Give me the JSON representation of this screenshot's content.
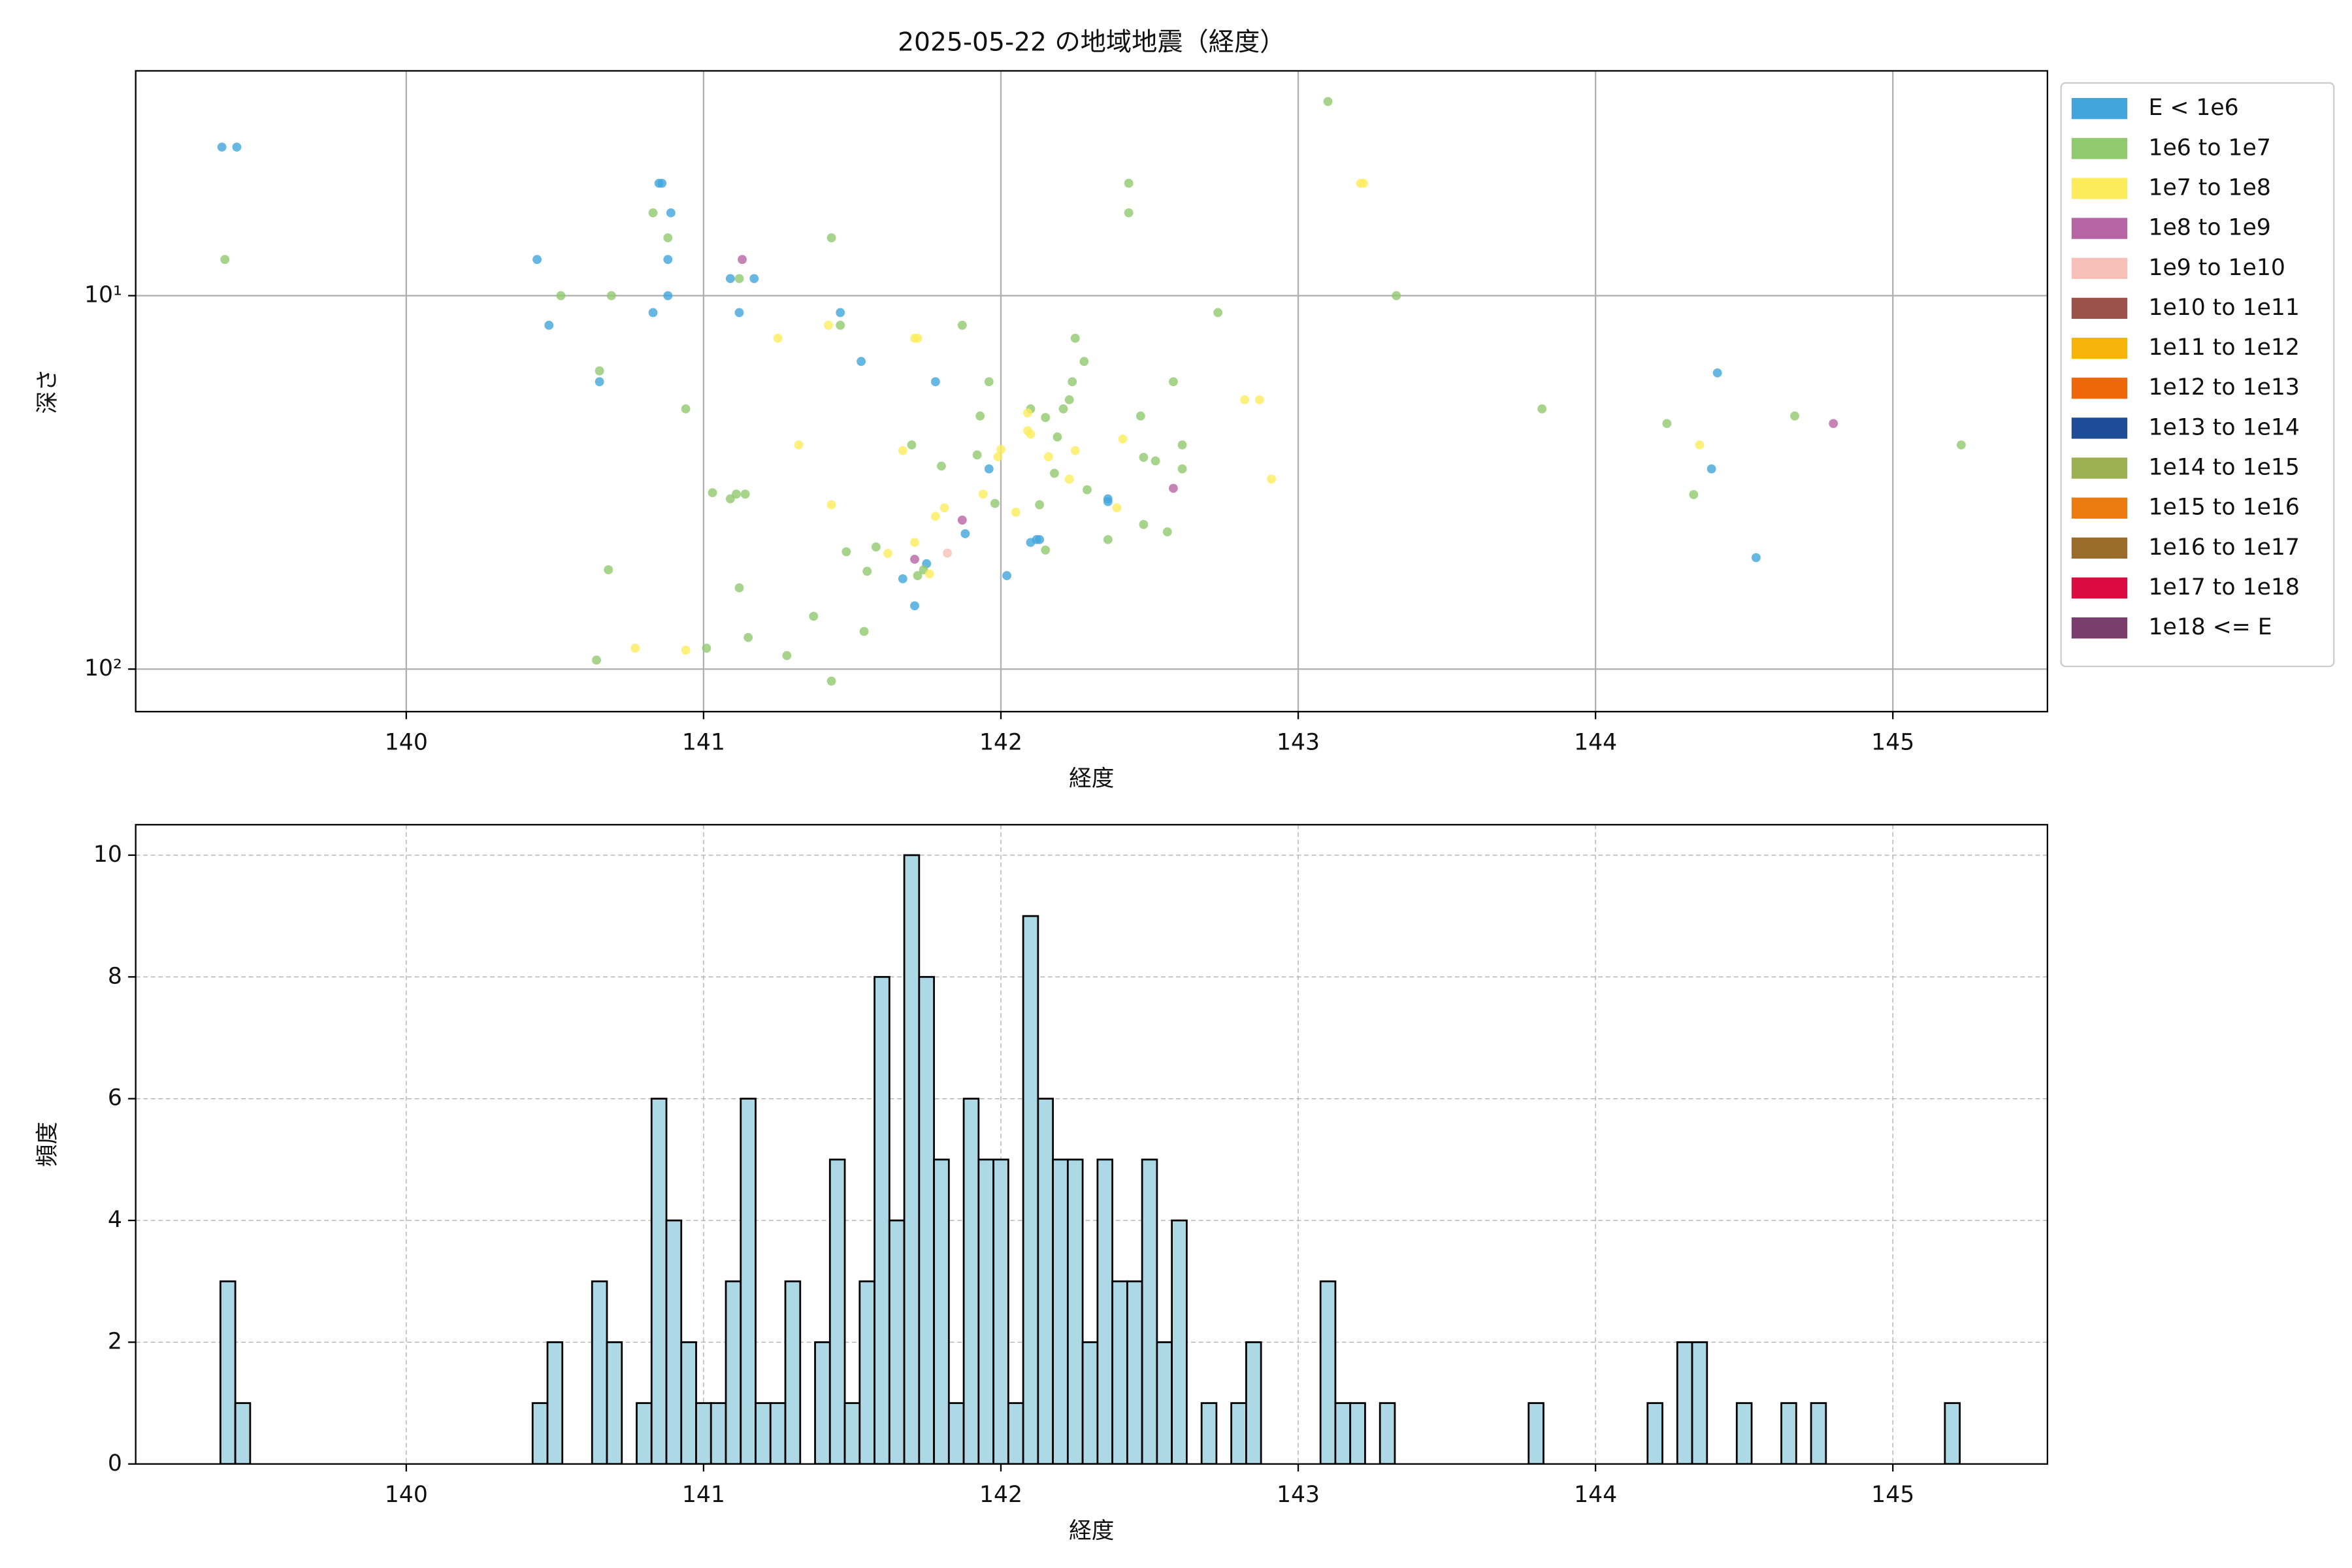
{
  "chart_data": [
    {
      "type": "scatter",
      "title": "2025-05-22 の地域地震（経度）",
      "x_label": "経度",
      "y_label": "深さ",
      "xlim": [
        139.09,
        145.52
      ],
      "xticks": [
        140,
        141,
        142,
        143,
        144,
        145
      ],
      "ylim": [
        2.5,
        130
      ],
      "y_scale": "log",
      "y_inverted": true,
      "yticks": [
        {
          "value": 10,
          "label": "10¹"
        },
        {
          "value": 100,
          "label": "10²"
        }
      ],
      "grid": true,
      "grid_linestyle": "solid",
      "legend": "outside upper right",
      "series": [
        {
          "name": "E < 1e6",
          "color": "#41a5dc",
          "x": [
            139.38,
            139.43,
            140.44,
            140.48,
            140.65,
            140.83,
            140.85,
            140.86,
            140.88,
            140.88,
            140.89,
            141.09,
            141.12,
            141.17,
            141.46,
            141.53,
            141.78,
            141.71,
            141.67,
            141.75,
            141.88,
            141.96,
            142.02,
            142.1,
            142.12,
            142.13,
            142.36,
            142.36,
            144.41,
            144.39,
            144.54
          ],
          "values": [
            4,
            4,
            8,
            12,
            17,
            11.1,
            5,
            5,
            8,
            10,
            6,
            9,
            11.1,
            9,
            11.1,
            15,
            17,
            67.7,
            57.3,
            52.2,
            43.4,
            29.1,
            56.2,
            45.8,
            45,
            45,
            35,
            35.6,
            16.1,
            29.1,
            50.3
          ]
        },
        {
          "name": "1e6 to 1e7",
          "color": "#90c96e",
          "x": [
            139.39,
            140.52,
            140.65,
            140.69,
            140.68,
            140.64,
            140.83,
            140.88,
            140.94,
            141.01,
            141.12,
            141.03,
            141.09,
            141.11,
            141.14,
            141.12,
            141.15,
            141.28,
            141.37,
            141.43,
            141.46,
            141.43,
            141.48,
            141.54,
            141.55,
            141.58,
            141.7,
            141.72,
            141.74,
            141.8,
            141.87,
            141.92,
            141.93,
            141.96,
            141.98,
            142.1,
            142.13,
            142.15,
            142.15,
            142.18,
            142.19,
            142.21,
            142.23,
            142.24,
            142.25,
            142.28,
            142.29,
            142.36,
            142.43,
            142.43,
            142.47,
            142.48,
            142.48,
            142.52,
            142.56,
            142.58,
            142.61,
            142.61,
            142.73,
            143.33,
            143.1,
            143.82,
            144.24,
            144.33,
            144.67,
            145.23
          ],
          "values": [
            8,
            10,
            15.9,
            10,
            54.2,
            94.6,
            6,
            7,
            20.1,
            87.9,
            9,
            33.7,
            35,
            34,
            34,
            60.6,
            82.3,
            92,
            72.2,
            7,
            12,
            107.7,
            48.5,
            79.3,
            54.7,
            47.1,
            25.1,
            56.2,
            54.2,
            28.6,
            12,
            26.7,
            21,
            17,
            36,
            20.1,
            36.3,
            21.2,
            48,
            29.9,
            23.9,
            20.1,
            19,
            17,
            13,
            15,
            33.1,
            45,
            6,
            5,
            21,
            27.1,
            41,
            27.7,
            42.9,
            17,
            29.1,
            25.1,
            11.1,
            10,
            3.02,
            20.1,
            22,
            34.1,
            21,
            25.1
          ]
        },
        {
          "name": "1e7 to 1e8",
          "color": "#fcec5b",
          "x": [
            143.21,
            143.22,
            141.25,
            141.42,
            141.71,
            141.72,
            141.32,
            141.43,
            141.67,
            141.71,
            141.78,
            141.81,
            141.62,
            141.76,
            141.94,
            141.99,
            142.0,
            142.05,
            142.09,
            142.09,
            142.1,
            142.16,
            142.23,
            142.25,
            142.39,
            142.41,
            142.82,
            142.87,
            142.91,
            144.35,
            140.77,
            140.94
          ],
          "values": [
            5,
            5,
            13,
            12,
            13,
            13,
            25.1,
            36.3,
            26,
            45.8,
            39,
            37,
            49,
            55.6,
            34,
            27,
            25.8,
            38,
            20.6,
            23,
            23.5,
            27,
            31,
            26,
            37,
            24.2,
            19,
            19,
            31,
            25.1,
            87.9,
            89
          ]
        },
        {
          "name": "1e8 to 1e9",
          "color": "#b764a5",
          "x": [
            141.13,
            141.87,
            141.71,
            142.58,
            144.8
          ],
          "values": [
            8,
            39.9,
            50.8,
            32.8,
            22
          ]
        },
        {
          "name": "1e9 to 1e10",
          "color": "#f6c0b8",
          "x": [
            141.82
          ],
          "values": [
            48.9
          ]
        },
        {
          "name": "1e10 to 1e11",
          "color": "#9b5048",
          "x": [],
          "values": []
        },
        {
          "name": "1e11 to 1e12",
          "color": "#f6b30a",
          "x": [],
          "values": []
        },
        {
          "name": "1e12 to 1e13",
          "color": "#ee6708",
          "x": [],
          "values": []
        },
        {
          "name": "1e13 to 1e14",
          "color": "#1d4d96",
          "x": [],
          "values": []
        },
        {
          "name": "1e14 to 1e15",
          "color": "#9caf51",
          "x": [],
          "values": []
        },
        {
          "name": "1e15 to 1e16",
          "color": "#ec7b0f",
          "x": [],
          "values": []
        },
        {
          "name": "1e16 to 1e17",
          "color": "#9a6c2c",
          "x": [],
          "values": []
        },
        {
          "name": "1e17 to 1e18",
          "color": "#db0a40",
          "x": [],
          "values": []
        },
        {
          "name": "1e18 <= E",
          "color": "#7a3e6d",
          "x": [],
          "values": []
        }
      ]
    },
    {
      "type": "histogram",
      "x_label": "経度",
      "y_label": "頻度",
      "xlim": [
        139.09,
        145.52
      ],
      "xticks": [
        140,
        141,
        142,
        143,
        144,
        145
      ],
      "ylim": [
        0,
        10.5
      ],
      "yticks": [
        0,
        2,
        4,
        6,
        8,
        10
      ],
      "grid": true,
      "grid_linestyle": "dashed",
      "color": "#add8e6",
      "edge_color": "#000000",
      "bins": [
        139.375,
        139.425,
        139.475,
        139.525,
        139.575,
        139.625,
        139.675,
        139.725,
        139.775,
        139.825,
        139.875,
        139.925,
        139.975,
        140.025,
        140.075,
        140.125,
        140.175,
        140.225,
        140.275,
        140.325,
        140.375,
        140.425,
        140.475,
        140.525,
        140.575,
        140.625,
        140.675,
        140.725,
        140.775,
        140.825,
        140.875,
        140.925,
        140.975,
        141.025,
        141.075,
        141.125,
        141.175,
        141.225,
        141.275,
        141.325,
        141.375,
        141.425,
        141.475,
        141.525,
        141.575,
        141.625,
        141.675,
        141.725,
        141.775,
        141.825,
        141.875,
        141.925,
        141.975,
        142.025,
        142.075,
        142.125,
        142.175,
        142.225,
        142.275,
        142.325,
        142.375,
        142.425,
        142.475,
        142.525,
        142.575,
        142.625,
        142.675,
        142.725,
        142.775,
        142.825,
        142.875,
        142.925,
        142.975,
        143.025,
        143.075,
        143.125,
        143.175,
        143.225,
        143.275,
        143.325,
        143.375,
        143.425,
        143.475,
        143.525,
        143.575,
        143.625,
        143.675,
        143.725,
        143.775,
        143.825,
        143.875,
        143.925,
        143.975,
        144.025,
        144.075,
        144.125,
        144.175,
        144.225,
        144.275,
        144.325,
        144.375,
        144.425,
        144.475,
        144.525,
        144.575,
        144.625,
        144.675,
        144.725,
        144.775,
        144.825,
        144.875,
        144.925,
        144.975,
        145.025,
        145.075,
        145.125,
        145.175,
        145.225
      ],
      "values": [
        3,
        1,
        0,
        0,
        0,
        0,
        0,
        0,
        0,
        0,
        0,
        0,
        0,
        0,
        0,
        0,
        0,
        0,
        0,
        0,
        0,
        1,
        2,
        0,
        0,
        3,
        2,
        0,
        1,
        6,
        4,
        2,
        1,
        1,
        3,
        6,
        1,
        1,
        3,
        0,
        2,
        5,
        1,
        3,
        8,
        4,
        10,
        8,
        5,
        1,
        6,
        5,
        5,
        1,
        9,
        6,
        5,
        5,
        2,
        5,
        3,
        3,
        5,
        2,
        4,
        0,
        1,
        0,
        1,
        2,
        0,
        0,
        0,
        0,
        3,
        1,
        1,
        0,
        1,
        0,
        0,
        0,
        0,
        0,
        0,
        0,
        0,
        0,
        1,
        0,
        0,
        0,
        0,
        0,
        0,
        0,
        1,
        0,
        2,
        2,
        0,
        0,
        1,
        0,
        0,
        1,
        0,
        1,
        0,
        0,
        0,
        0,
        0,
        0,
        0,
        0,
        1
      ]
    }
  ]
}
